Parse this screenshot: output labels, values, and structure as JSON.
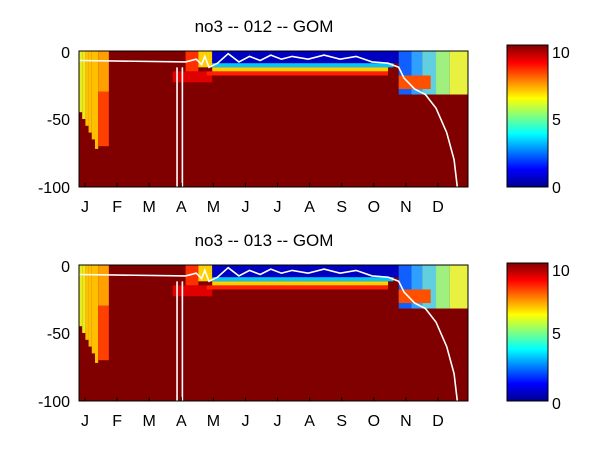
{
  "chart_data": [
    {
      "type": "heatmap",
      "title": "no3 -- 012 -- GOM",
      "ylim": [
        -100,
        0
      ],
      "y_ticks": [
        0,
        -50,
        -100
      ],
      "x_ticks": [
        "J",
        "F",
        "M",
        "A",
        "M",
        "J",
        "J",
        "A",
        "S",
        "O",
        "N",
        "D"
      ],
      "colorbar": {
        "range": [
          0,
          10
        ],
        "ticks": [
          0,
          5,
          10
        ],
        "colormap": "jet"
      },
      "mixed_layer_contour_color": "#ffffff"
    },
    {
      "type": "heatmap",
      "title": "no3 -- 013 -- GOM",
      "ylim": [
        -100,
        0
      ],
      "y_ticks": [
        0,
        -50,
        -100
      ],
      "x_ticks": [
        "J",
        "F",
        "M",
        "A",
        "M",
        "J",
        "J",
        "A",
        "S",
        "O",
        "N",
        "D"
      ],
      "colorbar": {
        "range": [
          0,
          10
        ],
        "ticks": [
          0,
          5,
          10
        ],
        "colormap": "jet"
      },
      "mixed_layer_contour_color": "#ffffff"
    }
  ]
}
